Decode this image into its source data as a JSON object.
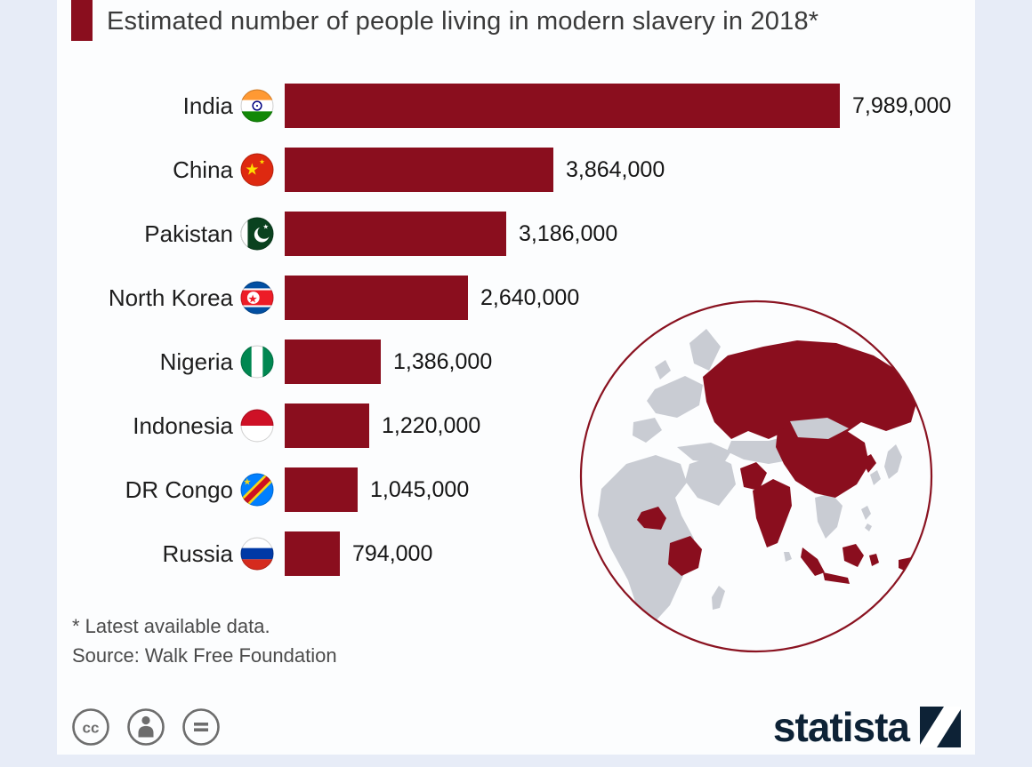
{
  "page": {
    "background": "#e7ecf7",
    "card_background": "#fcfdfe"
  },
  "header": {
    "title": "Estimated number of people living in modern slavery in 2018*",
    "accent_color": "#8a0e1e"
  },
  "chart_data": {
    "type": "bar",
    "orientation": "horizontal",
    "title": "Estimated number of people living in modern slavery in 2018*",
    "categories": [
      "India",
      "China",
      "Pakistan",
      "North Korea",
      "Nigeria",
      "Indonesia",
      "DR Congo",
      "Russia"
    ],
    "values": [
      7989000,
      3864000,
      3186000,
      2640000,
      1386000,
      1220000,
      1045000,
      794000
    ],
    "value_labels": [
      "7,989,000",
      "3,864,000",
      "3,186,000",
      "2,640,000",
      "1,386,000",
      "1,220,000",
      "1,045,000",
      "794,000"
    ],
    "flags": [
      "india",
      "china",
      "pakistan",
      "north-korea",
      "nigeria",
      "indonesia",
      "dr-congo",
      "russia"
    ],
    "bar_color": "#8a0e1e",
    "xlim": [
      0,
      7989000
    ],
    "grid": false,
    "legend": false
  },
  "map": {
    "highlight_color": "#8a0e1e",
    "land_color": "#c9ccd3",
    "circle_border_color": "#8a1321",
    "highlighted_countries": [
      "Russia",
      "China",
      "India",
      "Pakistan",
      "North Korea",
      "Nigeria",
      "DR Congo",
      "Indonesia"
    ]
  },
  "footnotes": {
    "note": "* Latest available data.",
    "source": "Source: Walk Free Foundation"
  },
  "footer": {
    "logo_text": "statista",
    "license_icons": [
      "creative-commons",
      "attribution",
      "equals"
    ]
  }
}
